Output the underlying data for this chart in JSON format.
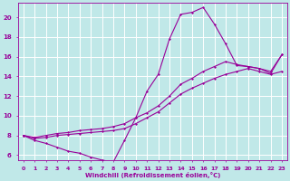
{
  "xlabel": "Windchill (Refroidissement éolien,°C)",
  "background_color": "#c0e8e8",
  "grid_color": "#ffffff",
  "line_color": "#990099",
  "xlim": [
    -0.5,
    23.5
  ],
  "ylim": [
    5.5,
    21.5
  ],
  "yticks": [
    6,
    8,
    10,
    12,
    14,
    16,
    18,
    20
  ],
  "xticks": [
    0,
    1,
    2,
    3,
    4,
    5,
    6,
    7,
    8,
    9,
    10,
    11,
    12,
    13,
    14,
    15,
    16,
    17,
    18,
    19,
    20,
    21,
    22,
    23
  ],
  "line1_x": [
    0,
    1,
    2,
    3,
    4,
    5,
    6,
    7,
    8,
    9,
    10,
    11,
    12,
    13,
    14,
    15,
    16,
    17,
    18,
    19,
    20,
    21,
    22,
    23
  ],
  "line1_y": [
    8.0,
    7.5,
    7.2,
    6.8,
    6.4,
    6.2,
    5.8,
    5.5,
    5.3,
    7.5,
    9.8,
    12.5,
    14.2,
    17.8,
    20.3,
    20.5,
    21.0,
    19.3,
    17.3,
    15.1,
    15.0,
    14.8,
    14.3,
    16.2
  ],
  "line2_x": [
    0,
    1,
    2,
    3,
    4,
    5,
    6,
    7,
    8,
    9,
    10,
    11,
    12,
    13,
    14,
    15,
    16,
    17,
    18,
    19,
    20,
    21,
    22,
    23
  ],
  "line2_y": [
    8.0,
    7.8,
    8.0,
    8.2,
    8.3,
    8.5,
    8.6,
    8.7,
    8.9,
    9.2,
    9.8,
    10.3,
    11.0,
    12.0,
    13.2,
    13.8,
    14.5,
    15.0,
    15.5,
    15.2,
    15.0,
    14.8,
    14.5,
    16.2
  ],
  "line3_x": [
    0,
    1,
    2,
    3,
    4,
    5,
    6,
    7,
    8,
    9,
    10,
    11,
    12,
    13,
    14,
    15,
    16,
    17,
    18,
    19,
    20,
    21,
    22,
    23
  ],
  "line3_y": [
    8.0,
    7.7,
    7.8,
    8.0,
    8.1,
    8.2,
    8.3,
    8.4,
    8.5,
    8.7,
    9.2,
    9.8,
    10.4,
    11.3,
    12.2,
    12.8,
    13.3,
    13.8,
    14.2,
    14.5,
    14.8,
    14.5,
    14.2,
    14.5
  ]
}
